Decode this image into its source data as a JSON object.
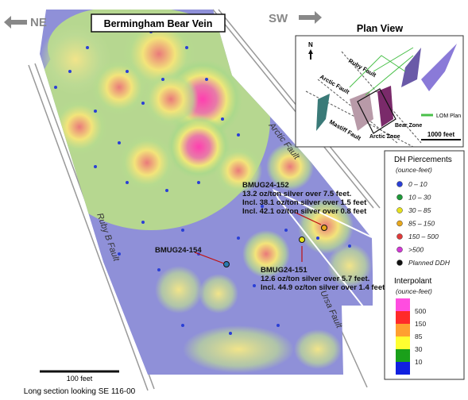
{
  "header": {
    "left_direction": "NE",
    "title": "Bermingham Bear Vein",
    "right_direction": "SW"
  },
  "plan_view": {
    "title": "Plan View",
    "north": "N",
    "labels": [
      "Ruby Fault",
      "Arctic Fault",
      "Mastiff Fault",
      "Bear Zone",
      "Arctic Zone"
    ],
    "legend": "LOM Plan",
    "scale": "1000 feet"
  },
  "faults": {
    "arctic": "Arctic Fault",
    "ruby_b": "Ruby B Fault",
    "ursa": "Ursa Fault"
  },
  "annotations": {
    "hole_152": {
      "name": "BMUG24-152",
      "lines": [
        "13.2 oz/ton silver over 7.5 feet.",
        "Incl. 38.1 oz/ton silver over 1.5 feet",
        "Incl. 42.1 oz/ton silver over 0.8 feet"
      ]
    },
    "hole_154": {
      "name": "BMUG24-154"
    },
    "hole_151": {
      "name": "BMUG24-151",
      "lines": [
        "12.6 oz/ton silver over 5.7 feet.",
        "Incl. 44.9 oz/ton silver over 1.4 feet"
      ]
    }
  },
  "legend": {
    "title": "DH Piercements",
    "unit": "(ounce-feet)",
    "items": [
      {
        "label": "0 – 10",
        "color": "#2a3fd6"
      },
      {
        "label": "10 – 30",
        "color": "#1f9a3a"
      },
      {
        "label": "30 – 85",
        "color": "#e6e21e"
      },
      {
        "label": "85 – 150",
        "color": "#e8a81e"
      },
      {
        "label": "150 – 500",
        "color": "#e03a3a"
      },
      {
        "label": ">500",
        "color": "#d23ad6"
      },
      {
        "label": "Planned DDH",
        "color": "#111111"
      }
    ],
    "interpolant_title": "Interpolant",
    "interpolant_unit": "(ounce-feet)",
    "scale": [
      {
        "label": "500",
        "color": "#ff4de0"
      },
      {
        "label": "150",
        "color": "#ff2a2a"
      },
      {
        "label": "85",
        "color": "#ffa030"
      },
      {
        "label": "30",
        "color": "#ffff30"
      },
      {
        "label": "10",
        "color": "#1aa01a"
      },
      {
        "label": "",
        "color": "#1020e0"
      }
    ]
  },
  "footer": {
    "scale": "100 feet",
    "caption": "Long section looking SE 116-00"
  }
}
